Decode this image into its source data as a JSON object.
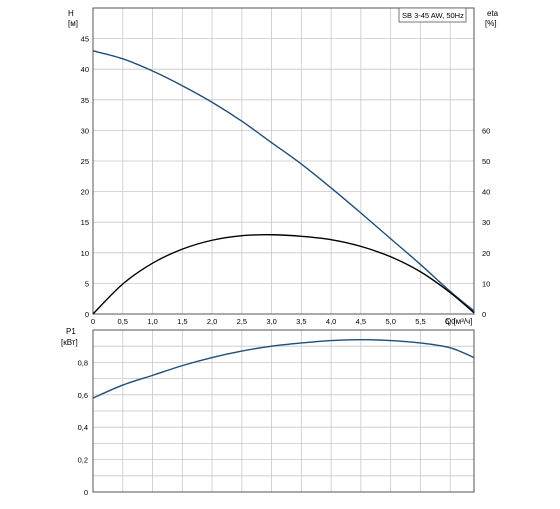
{
  "chart_data": [
    {
      "type": "line",
      "legend_box": "SB 3-45 AW, 50Hz",
      "left_axis": {
        "label": "H",
        "unit": "[м]",
        "ylim": [
          0,
          50
        ],
        "ticks": [
          "0",
          "5",
          "10",
          "15",
          "20",
          "25",
          "30",
          "35",
          "40",
          "45"
        ]
      },
      "right_axis": {
        "label": "eta",
        "unit": "[%]",
        "ylim": [
          0,
          100
        ],
        "ticks": [
          "0",
          "10",
          "20",
          "30",
          "40",
          "50",
          "60"
        ]
      },
      "x_axis": {
        "label": "Q [м³/ч]",
        "xlim": [
          0,
          6.4
        ],
        "ticks": [
          "0",
          "0,5",
          "1,0",
          "1,5",
          "2,0",
          "2,5",
          "3,0",
          "3,5",
          "4,0",
          "4,5",
          "5,0",
          "5,5",
          "6,0"
        ]
      },
      "grid": true,
      "series": [
        {
          "key": "head",
          "axis": "left",
          "color": "#1f4e79",
          "x": [
            0,
            0.5,
            1.0,
            1.5,
            2.0,
            2.5,
            3.0,
            3.5,
            4.0,
            4.5,
            5.0,
            5.5,
            6.0,
            6.4
          ],
          "values": [
            43.0,
            41.7,
            39.7,
            37.3,
            34.6,
            31.5,
            28.0,
            24.5,
            20.6,
            16.5,
            12.3,
            8.1,
            3.7,
            0.5
          ]
        },
        {
          "key": "eta",
          "axis": "right",
          "color": "#000000",
          "x": [
            0,
            0.5,
            1.0,
            1.5,
            2.0,
            2.5,
            3.0,
            3.5,
            4.0,
            4.5,
            5.0,
            5.5,
            6.0,
            6.4
          ],
          "values": [
            0,
            9.8,
            16.6,
            21.2,
            24.1,
            25.6,
            25.9,
            25.4,
            24.3,
            22.1,
            18.7,
            13.8,
            7.0,
            0.4
          ]
        }
      ]
    },
    {
      "type": "line",
      "left_axis": {
        "label": "P1",
        "unit": "[кВт]",
        "ylim": [
          0,
          1.0
        ],
        "ticks": [
          "0",
          "0,2",
          "0,4",
          "0,6",
          "0,8"
        ]
      },
      "x_axis": {
        "xlim": [
          0,
          6.4
        ]
      },
      "grid": true,
      "series": [
        {
          "key": "power",
          "axis": "left",
          "color": "#1f4e79",
          "x": [
            0,
            0.5,
            1.0,
            1.5,
            2.0,
            2.5,
            3.0,
            3.5,
            4.0,
            4.5,
            5.0,
            5.5,
            6.0,
            6.4
          ],
          "values": [
            0.58,
            0.66,
            0.72,
            0.78,
            0.83,
            0.87,
            0.9,
            0.92,
            0.935,
            0.94,
            0.935,
            0.92,
            0.89,
            0.83
          ]
        }
      ]
    }
  ]
}
